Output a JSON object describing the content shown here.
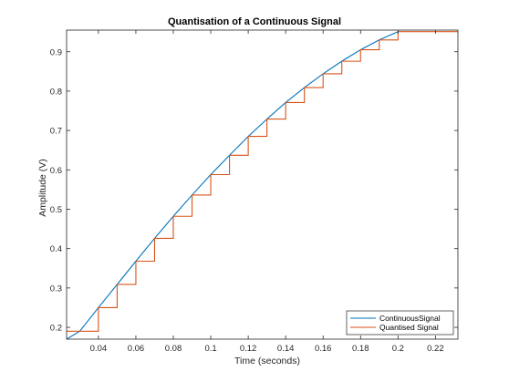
{
  "chart_data": {
    "type": "line",
    "title": "Quantisation of a Continuous Signal",
    "xlabel": "Time (seconds)",
    "ylabel": "Amplitude (V)",
    "xlim": [
      0.023,
      0.232
    ],
    "ylim": [
      0.17,
      0.955
    ],
    "x_ticks": [
      0.04,
      0.06,
      0.08,
      0.1,
      0.12,
      0.14,
      0.16,
      0.18,
      0.2,
      0.22
    ],
    "x_tick_labels": [
      "0.04",
      "0.06",
      "0.08",
      "0.1",
      "0.12",
      "0.14",
      "0.16",
      "0.18",
      "0.2",
      "0.22"
    ],
    "y_ticks": [
      0.2,
      0.3,
      0.4,
      0.5,
      0.6,
      0.7,
      0.8,
      0.9
    ],
    "y_tick_labels": [
      "0.2",
      "0.3",
      "0.4",
      "0.5",
      "0.6",
      "0.7",
      "0.8",
      "0.9"
    ],
    "grid": false,
    "legend_position": "bottom-right",
    "series": [
      {
        "name": "ContinuousSignal",
        "color": "#0072BD",
        "style": "line",
        "x": [
          0.023,
          0.03,
          0.04,
          0.05,
          0.06,
          0.07,
          0.08,
          0.09,
          0.1,
          0.11,
          0.12,
          0.13,
          0.14,
          0.15,
          0.16,
          0.17,
          0.18,
          0.19,
          0.2
        ],
        "y": [
          0.17,
          0.19,
          0.25,
          0.309,
          0.368,
          0.426,
          0.482,
          0.536,
          0.588,
          0.637,
          0.685,
          0.729,
          0.771,
          0.809,
          0.844,
          0.876,
          0.905,
          0.93,
          0.951
        ]
      },
      {
        "name": "Quantised Signal",
        "color": "#D95319",
        "style": "stairs",
        "x": [
          0.03,
          0.04,
          0.05,
          0.06,
          0.07,
          0.08,
          0.09,
          0.1,
          0.11,
          0.12,
          0.13,
          0.14,
          0.15,
          0.16,
          0.17,
          0.18,
          0.19,
          0.2
        ],
        "y": [
          0.19,
          0.25,
          0.309,
          0.368,
          0.426,
          0.482,
          0.536,
          0.588,
          0.637,
          0.685,
          0.729,
          0.771,
          0.809,
          0.844,
          0.876,
          0.905,
          0.93,
          0.951
        ]
      }
    ]
  }
}
